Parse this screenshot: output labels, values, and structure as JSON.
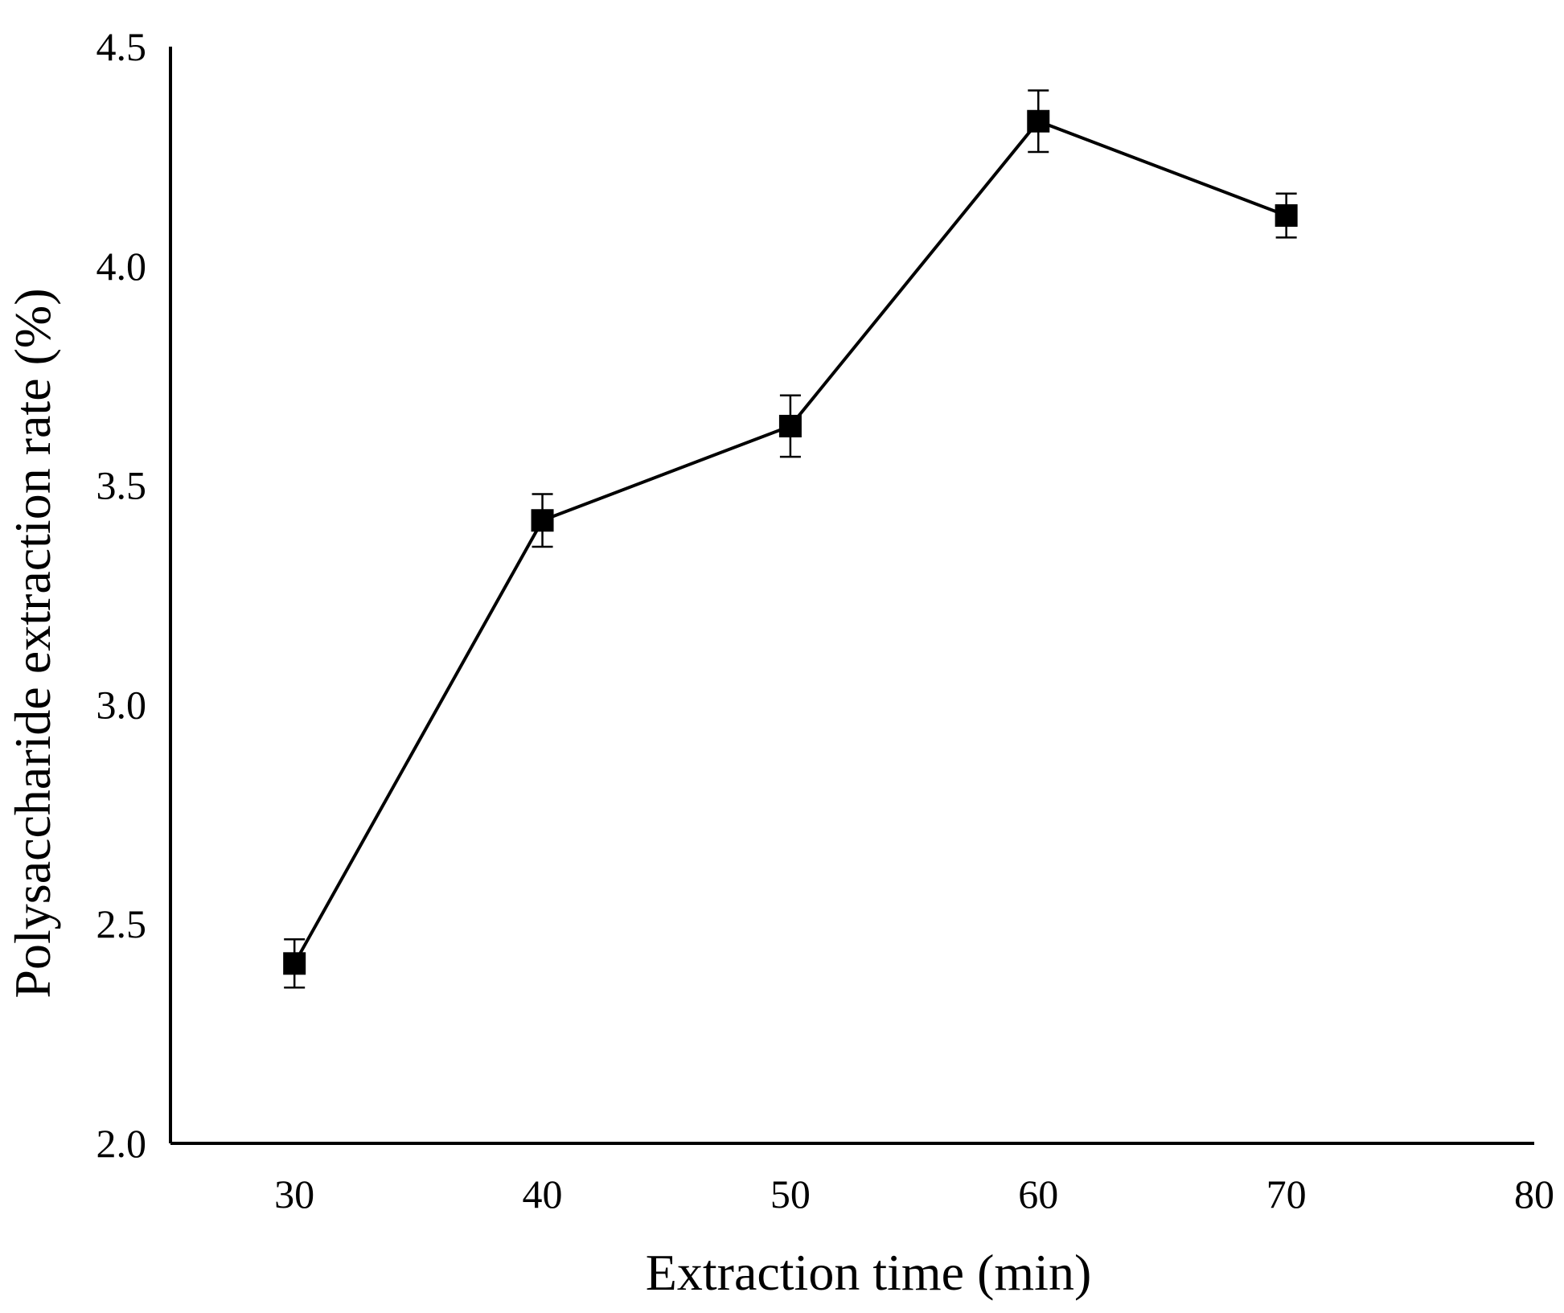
{
  "chart_data": {
    "type": "line",
    "title": "",
    "xlabel": "Extraction time (min)",
    "ylabel": "Polysaccharide extraction rate (%)",
    "xlim": [
      25,
      80
    ],
    "ylim": [
      2.0,
      4.5
    ],
    "xticks": [
      30,
      40,
      50,
      60,
      70,
      80
    ],
    "yticks": [
      "2.0",
      "2.5",
      "3.0",
      "3.5",
      "4.0",
      "4.5"
    ],
    "grid": false,
    "marker": "square",
    "series": [
      {
        "name": "Polysaccharide extraction rate",
        "color": "#000000",
        "x": [
          30,
          40,
          50,
          60,
          70
        ],
        "y": [
          2.41,
          3.42,
          3.635,
          4.33,
          4.115
        ],
        "error": [
          0.055,
          0.06,
          0.07,
          0.07,
          0.05
        ]
      }
    ]
  }
}
